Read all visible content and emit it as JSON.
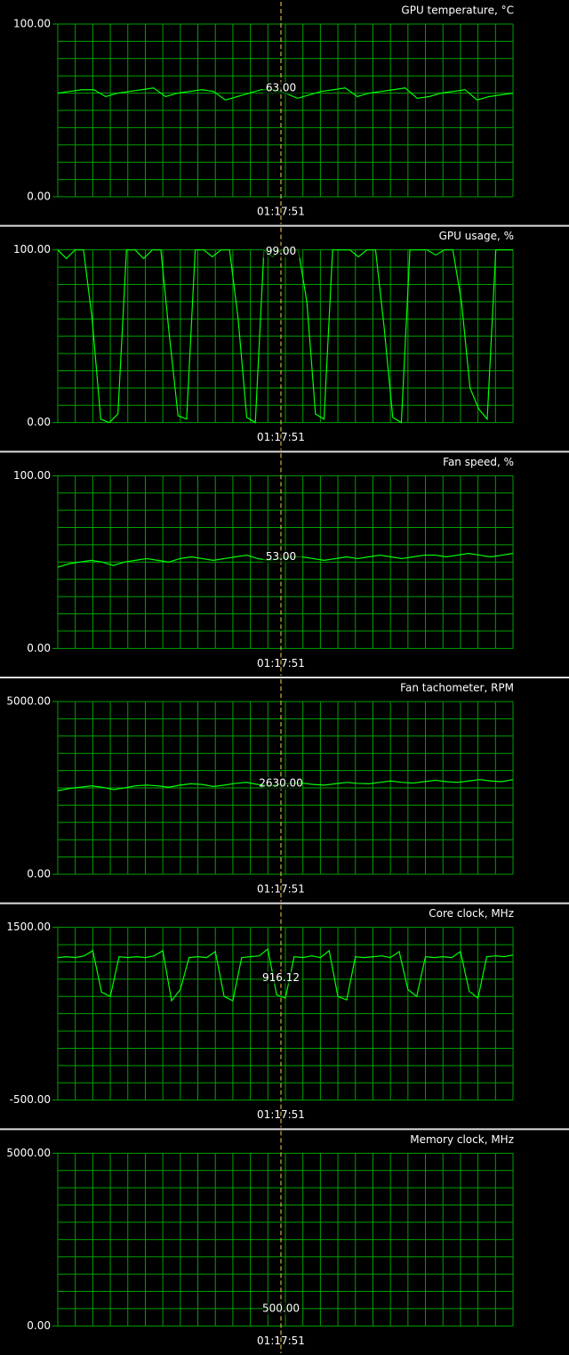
{
  "chart_data": [
    {
      "type": "line",
      "title": "GPU temperature, °C",
      "color": "#00ff00",
      "ylim": [
        0,
        100
      ],
      "yticks": [
        {
          "value": 0,
          "label": "0.00"
        },
        {
          "value": 100,
          "label": "100.00"
        }
      ],
      "grid": true,
      "time": "01:17:51",
      "cursor": {
        "value": 63,
        "label": "63.00"
      },
      "values": [
        60,
        61,
        62,
        62,
        58,
        60,
        61,
        62,
        63,
        58,
        60,
        61,
        62,
        61,
        56,
        58,
        60,
        62,
        62,
        60,
        57,
        59,
        61,
        62,
        63,
        58,
        60,
        61,
        62,
        63,
        57,
        58,
        60,
        61,
        62,
        56,
        58,
        59,
        60
      ]
    },
    {
      "type": "line",
      "title": "GPU usage, %",
      "color": "#00ff00",
      "ylim": [
        0,
        100
      ],
      "yticks": [
        {
          "value": 0,
          "label": "0.00"
        },
        {
          "value": 100,
          "label": "100.00"
        }
      ],
      "grid": true,
      "time": "01:17:51",
      "cursor": {
        "value": 99,
        "label": "99.00"
      },
      "values": [
        100,
        95,
        100,
        100,
        60,
        2,
        0,
        5,
        100,
        100,
        95,
        100,
        100,
        50,
        4,
        2,
        100,
        100,
        96,
        100,
        100,
        60,
        3,
        0,
        100,
        96,
        100,
        100,
        100,
        70,
        5,
        2,
        100,
        100,
        100,
        96,
        100,
        100,
        55,
        3,
        0,
        100,
        100,
        100,
        97,
        100,
        100,
        70,
        20,
        8,
        2,
        100,
        100,
        100
      ]
    },
    {
      "type": "line",
      "title": "Fan speed, %",
      "color": "#00ff00",
      "ylim": [
        0,
        100
      ],
      "yticks": [
        {
          "value": 0,
          "label": "0.00"
        },
        {
          "value": 100,
          "label": "100.00"
        }
      ],
      "grid": true,
      "time": "01:17:51",
      "cursor": {
        "value": 53,
        "label": "53.00"
      },
      "values": [
        47,
        49,
        50,
        51,
        50,
        48,
        50,
        51,
        52,
        51,
        50,
        52,
        53,
        52,
        51,
        52,
        53,
        54,
        52,
        51,
        52,
        53,
        53,
        52,
        51,
        52,
        53,
        52,
        53,
        54,
        53,
        52,
        53,
        54,
        54,
        53,
        54,
        55,
        54,
        53,
        54,
        55
      ]
    },
    {
      "type": "line",
      "title": "Fan tachometer, RPM",
      "color": "#00ff00",
      "ylim": [
        0,
        5000
      ],
      "yticks": [
        {
          "value": 0,
          "label": "0.00"
        },
        {
          "value": 5000,
          "label": "5000.00"
        }
      ],
      "grid": true,
      "time": "01:17:51",
      "cursor": {
        "value": 2630,
        "label": "2630.00"
      },
      "values": [
        2420,
        2480,
        2520,
        2560,
        2520,
        2450,
        2500,
        2560,
        2580,
        2560,
        2520,
        2580,
        2620,
        2600,
        2540,
        2580,
        2630,
        2660,
        2600,
        2560,
        2600,
        2630,
        2640,
        2600,
        2580,
        2620,
        2660,
        2630,
        2620,
        2660,
        2700,
        2660,
        2640,
        2680,
        2720,
        2680,
        2660,
        2700,
        2740,
        2700,
        2680,
        2740
      ]
    },
    {
      "type": "line",
      "title": "Core clock, MHz",
      "color": "#00ff00",
      "ylim": [
        -500,
        1500
      ],
      "yticks": [
        {
          "value": -500,
          "label": "-500.00"
        },
        {
          "value": 1500,
          "label": "1500.00"
        }
      ],
      "grid": true,
      "time": "01:17:51",
      "cursor": {
        "value": 916.12,
        "label": "916.12"
      },
      "values": [
        1150,
        1160,
        1150,
        1170,
        1230,
        750,
        700,
        1160,
        1150,
        1160,
        1150,
        1170,
        1230,
        650,
        780,
        1150,
        1160,
        1150,
        1220,
        700,
        650,
        1150,
        1160,
        1170,
        1250,
        720,
        680,
        1160,
        1150,
        1170,
        1150,
        1230,
        700,
        660,
        1160,
        1150,
        1160,
        1170,
        1150,
        1220,
        780,
        700,
        1160,
        1150,
        1160,
        1150,
        1220,
        760,
        680,
        1160,
        1170,
        1160,
        1180
      ]
    },
    {
      "type": "line",
      "title": "Memory clock, MHz",
      "color": "#00ff00",
      "ylim": [
        0,
        5000
      ],
      "yticks": [
        {
          "value": 0,
          "label": "0.00"
        },
        {
          "value": 5000,
          "label": "5000.00"
        }
      ],
      "grid": true,
      "time": "01:17:51",
      "cursor": {
        "value": 500,
        "label": "500.00"
      },
      "values": []
    }
  ]
}
